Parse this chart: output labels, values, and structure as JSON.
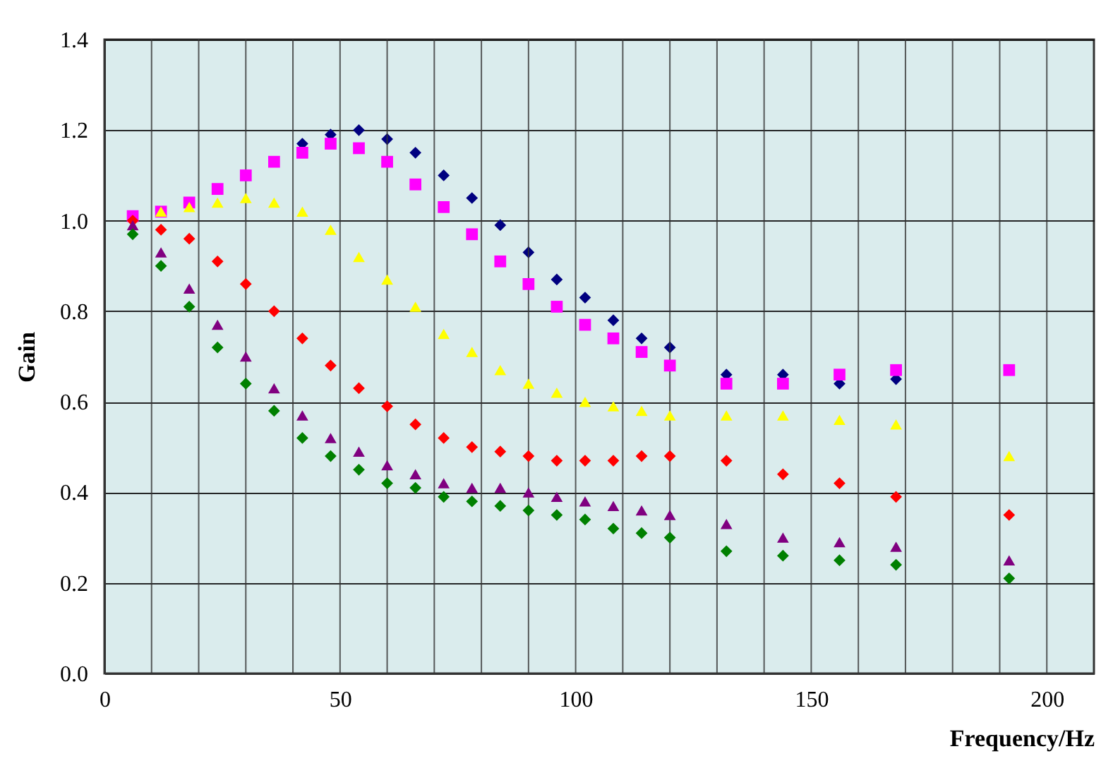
{
  "chart_data": {
    "type": "scatter",
    "xlabel": "Frequency/Hz",
    "ylabel": "Gain",
    "x": [
      6,
      12,
      18,
      24,
      30,
      36,
      42,
      48,
      54,
      60,
      66,
      72,
      78,
      84,
      90,
      96,
      102,
      108,
      114,
      120,
      132,
      144,
      156,
      168,
      192
    ],
    "series": [
      {
        "color": "#000080",
        "marker": "diamond",
        "values": [
          null,
          null,
          null,
          null,
          null,
          null,
          1.17,
          1.19,
          1.2,
          1.18,
          1.15,
          1.1,
          1.05,
          0.99,
          0.93,
          0.87,
          0.83,
          0.78,
          0.74,
          0.72,
          0.66,
          0.66,
          0.64,
          0.65,
          null
        ]
      },
      {
        "color": "#ff00ff",
        "marker": "square",
        "values": [
          1.01,
          1.02,
          1.04,
          1.07,
          1.1,
          1.13,
          1.15,
          1.17,
          1.16,
          1.13,
          1.08,
          1.03,
          0.97,
          0.91,
          0.86,
          0.81,
          0.77,
          0.74,
          0.71,
          0.68,
          0.64,
          0.64,
          0.66,
          0.67,
          0.67
        ]
      },
      {
        "color": "#ffff00",
        "marker": "triangle",
        "values": [
          null,
          1.02,
          1.03,
          1.04,
          1.05,
          1.04,
          1.02,
          0.98,
          0.92,
          0.87,
          0.81,
          0.75,
          0.71,
          0.67,
          0.64,
          0.62,
          0.6,
          0.59,
          0.58,
          0.57,
          0.57,
          0.57,
          0.56,
          0.55,
          0.48
        ]
      },
      {
        "color": "#ff0000",
        "marker": "diamond",
        "values": [
          1.0,
          0.98,
          0.96,
          0.91,
          0.86,
          0.8,
          0.74,
          0.68,
          0.63,
          0.59,
          0.55,
          0.52,
          0.5,
          0.49,
          0.48,
          0.47,
          0.47,
          0.47,
          0.48,
          0.48,
          0.47,
          0.44,
          0.42,
          0.39,
          0.35
        ]
      },
      {
        "color": "#800080",
        "marker": "triangle",
        "values": [
          0.99,
          0.93,
          0.85,
          0.77,
          0.7,
          0.63,
          0.57,
          0.52,
          0.49,
          0.46,
          0.44,
          0.42,
          0.41,
          0.41,
          0.4,
          0.39,
          0.38,
          0.37,
          0.36,
          0.35,
          0.33,
          0.3,
          0.29,
          0.28,
          0.25
        ]
      },
      {
        "color": "#008000",
        "marker": "diamond",
        "values": [
          0.97,
          0.9,
          0.81,
          0.72,
          0.64,
          0.58,
          0.52,
          0.48,
          0.45,
          0.42,
          0.41,
          0.39,
          0.38,
          0.37,
          0.36,
          0.35,
          0.34,
          0.32,
          0.31,
          0.3,
          0.27,
          0.26,
          0.25,
          0.24,
          0.21
        ]
      }
    ],
    "xlim": [
      0,
      210
    ],
    "xticks": [
      0,
      {
        "value": 10,
        "label": null
      },
      {
        "value": 20,
        "label": null
      },
      {
        "value": 30,
        "label": null
      },
      {
        "value": 40,
        "label": null
      },
      50,
      {
        "value": 60,
        "label": null
      },
      {
        "value": 70,
        "label": null
      },
      {
        "value": 80,
        "label": null
      },
      {
        "value": 90,
        "label": null
      },
      100,
      {
        "value": 110,
        "label": null
      },
      {
        "value": 120,
        "label": null
      },
      {
        "value": 130,
        "label": null
      },
      {
        "value": 140,
        "label": null
      },
      150,
      {
        "value": 160,
        "label": null
      },
      {
        "value": 170,
        "label": null
      },
      {
        "value": 180,
        "label": null
      },
      {
        "value": 190,
        "label": null
      },
      200
    ],
    "ylim": [
      0,
      1.4
    ],
    "yticks": [
      {
        "value": 0,
        "label": "0.0"
      },
      0.2,
      0.4,
      0.6,
      0.8,
      {
        "value": 1,
        "label": "1.0"
      },
      1.2,
      1.4
    ],
    "grid": true
  }
}
